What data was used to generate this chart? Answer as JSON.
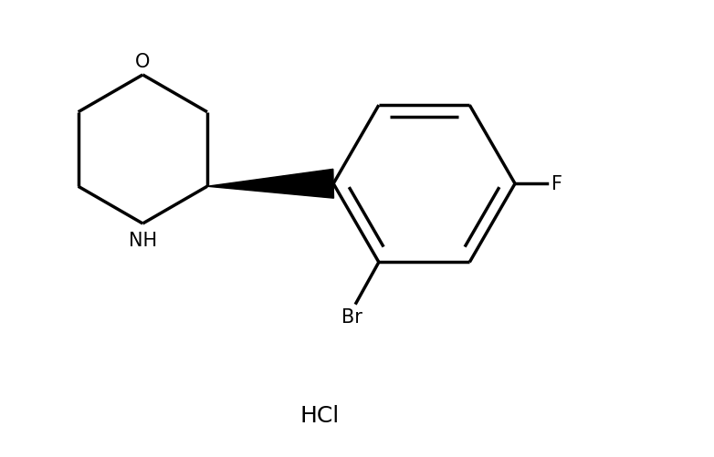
{
  "background_color": "#ffffff",
  "line_color": "#000000",
  "line_width": 2.5,
  "wedge_color": "#000000",
  "font_size_label": 15,
  "font_size_hcl": 18,
  "figsize": [
    7.82,
    5.02
  ],
  "dpi": 100,
  "xlim": [
    0,
    7.82
  ],
  "ylim": [
    0,
    5.02
  ]
}
